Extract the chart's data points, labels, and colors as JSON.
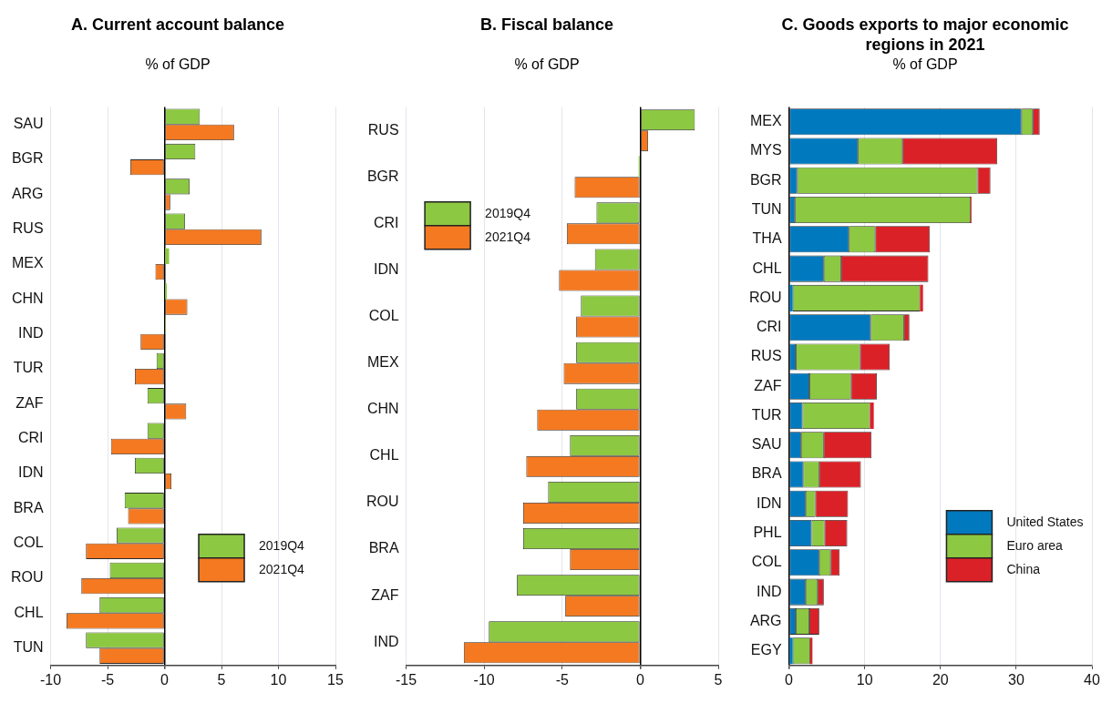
{
  "chart_data": [
    {
      "type": "bar",
      "title": "A. Current account balance",
      "subtitle": "% of GDP",
      "orientation": "horizontal",
      "categories": [
        "SAU",
        "BGR",
        "ARG",
        "RUS",
        "MEX",
        "CHN",
        "IND",
        "TUR",
        "ZAF",
        "CRI",
        "IDN",
        "BRA",
        "COL",
        "ROU",
        "CHL",
        "TUN"
      ],
      "series": [
        {
          "name": "2019Q4",
          "color": "#8cc841",
          "values": [
            3.1,
            2.7,
            2.2,
            1.8,
            0.4,
            0.2,
            0.1,
            -0.7,
            -1.5,
            -1.5,
            -2.6,
            -3.5,
            -4.2,
            -4.8,
            -5.7,
            -6.9
          ]
        },
        {
          "name": "2021Q4",
          "color": "#f47920",
          "values": [
            6.1,
            -3.0,
            0.5,
            8.5,
            -0.8,
            2.0,
            -2.1,
            -2.6,
            1.9,
            -4.7,
            0.6,
            -3.2,
            -6.9,
            -7.3,
            -8.6,
            -5.7
          ]
        }
      ],
      "xlim": [
        -10,
        15
      ],
      "xticks": [
        -10,
        -5,
        0,
        5,
        10,
        15
      ],
      "grid": "x",
      "legend": "bottom right"
    },
    {
      "type": "bar",
      "title": "B. Fiscal balance",
      "subtitle": "% of GDP",
      "orientation": "horizontal",
      "categories": [
        "RUS",
        "BGR",
        "CRI",
        "IDN",
        "COL",
        "MEX",
        "CHN",
        "CHL",
        "ROU",
        "BRA",
        "ZAF",
        "IND"
      ],
      "series": [
        {
          "name": "2019Q4",
          "color": "#8cc841",
          "values": [
            3.5,
            -0.1,
            -2.8,
            -2.9,
            -3.8,
            -4.1,
            -4.1,
            -4.5,
            -5.9,
            -7.5,
            -7.9,
            -9.7
          ]
        },
        {
          "name": "2021Q4",
          "color": "#f47920",
          "values": [
            0.5,
            -4.2,
            -4.7,
            -5.2,
            -4.1,
            -4.9,
            -6.6,
            -7.3,
            -7.5,
            -4.5,
            -4.8,
            -11.3
          ]
        }
      ],
      "xlim": [
        -15,
        5
      ],
      "xticks": [
        -15,
        -10,
        -5,
        0,
        5
      ],
      "grid": "x",
      "legend": "top left"
    },
    {
      "type": "bar",
      "title": "C. Goods exports to major economic regions in 2021",
      "subtitle": "% of GDP",
      "orientation": "horizontal",
      "stacked": true,
      "categories": [
        "MEX",
        "MYS",
        "BGR",
        "TUN",
        "THA",
        "CHL",
        "ROU",
        "CRI",
        "RUS",
        "ZAF",
        "TUR",
        "SAU",
        "BRA",
        "IDN",
        "PHL",
        "COL",
        "IND",
        "ARG",
        "EGY"
      ],
      "series": [
        {
          "name": "United States",
          "color": "#0079bf",
          "values": [
            30.7,
            9.1,
            1.1,
            0.8,
            7.9,
            4.6,
            0.5,
            10.8,
            0.9,
            2.7,
            1.8,
            1.6,
            1.9,
            2.2,
            3.0,
            4.0,
            2.2,
            0.9,
            0.5
          ]
        },
        {
          "name": "Euro area",
          "color": "#8cc841",
          "values": [
            1.5,
            5.9,
            23.8,
            23.2,
            3.5,
            2.3,
            16.8,
            4.4,
            8.5,
            5.5,
            8.9,
            3.0,
            2.1,
            1.3,
            1.7,
            1.5,
            1.6,
            1.8,
            2.3
          ]
        },
        {
          "name": "China",
          "color": "#db2128",
          "values": [
            0.9,
            12.5,
            1.7,
            0.1,
            7.2,
            11.5,
            0.4,
            0.7,
            3.9,
            3.4,
            0.5,
            6.3,
            5.5,
            4.3,
            3.0,
            1.2,
            0.8,
            1.3,
            0.3
          ]
        }
      ],
      "xlim": [
        0,
        40
      ],
      "xticks": [
        0,
        10,
        20,
        30,
        40
      ],
      "grid": "x",
      "legend": "bottom right"
    }
  ]
}
